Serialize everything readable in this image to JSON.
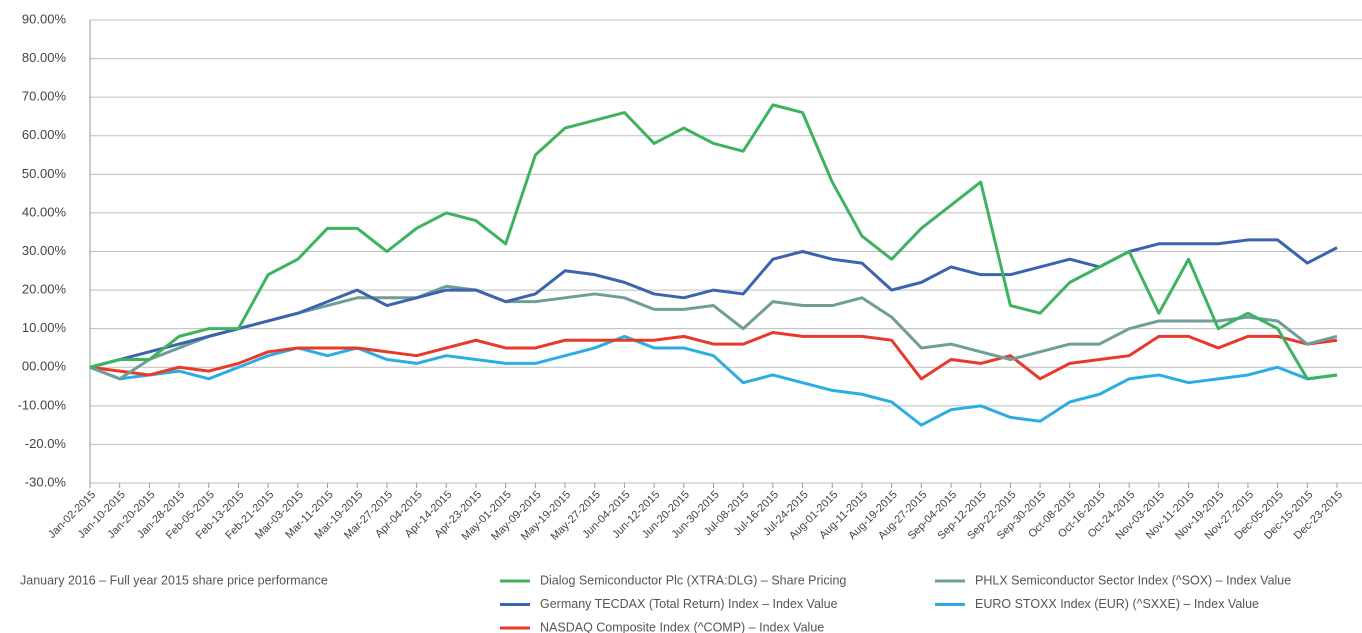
{
  "chart_data": {
    "type": "line",
    "footnote": "January 2016 – Full year 2015 share price performance",
    "categories": [
      "Jan-02-2015",
      "Jan-10-2015",
      "Jan-20-2015",
      "Jan-28-2015",
      "Feb-05-2015",
      "Feb-13-2015",
      "Feb-21-2015",
      "Mar-03-2015",
      "Mar-11-2015",
      "Mar-19-2015",
      "Mar-27-2015",
      "Apr-04-2015",
      "Apr-14-2015",
      "Apr-23-2015",
      "May-01-2015",
      "May-09-2015",
      "May-19-2015",
      "May-27-2015",
      "Jun-04-2015",
      "Jun-12-2015",
      "Jun-20-2015",
      "Jun-30-2015",
      "Jul-08-2015",
      "Jul-16-2015",
      "Jul-24-2015",
      "Aug-01-2015",
      "Aug-11-2015",
      "Aug-19-2015",
      "Aug-27-2015",
      "Sep-04-2015",
      "Sep-12-2015",
      "Sep-22-2015",
      "Sep-30-2015",
      "Oct-08-2015",
      "Oct-16-2015",
      "Oct-24-2015",
      "Nov-03-2015",
      "Nov-11-2015",
      "Nov-19-2015",
      "Nov-27-2015",
      "Dec-05-2015",
      "Dec-15-2015",
      "Dec-23-2015"
    ],
    "series": [
      {
        "name": "Dialog Semiconductor Plc (XTRA:DLG) – Share Pricing",
        "color": "#3db35f",
        "values": [
          0,
          2,
          2,
          8,
          10,
          10,
          24,
          28,
          36,
          36,
          30,
          36,
          40,
          38,
          32,
          55,
          62,
          64,
          66,
          58,
          62,
          58,
          56,
          68,
          66,
          48,
          34,
          28,
          36,
          42,
          48,
          16,
          14,
          22,
          26,
          30,
          14,
          28,
          10,
          14,
          10,
          -3,
          -2
        ]
      },
      {
        "name": "PHLX Semiconductor Sector Index (^SOX) – Index Value",
        "color": "#6f9e96",
        "values": [
          0,
          -3,
          2,
          5,
          8,
          10,
          12,
          14,
          16,
          18,
          18,
          18,
          21,
          20,
          17,
          17,
          18,
          19,
          18,
          15,
          15,
          16,
          10,
          17,
          16,
          16,
          18,
          13,
          5,
          6,
          4,
          2,
          4,
          6,
          6,
          10,
          12,
          12,
          12,
          13,
          12,
          6,
          8
        ]
      },
      {
        "name": "Germany TECDAX (Total Return) Index – Index Value",
        "color": "#3b64ae",
        "values": [
          0,
          2,
          4,
          6,
          8,
          10,
          12,
          14,
          17,
          20,
          16,
          18,
          20,
          20,
          17,
          19,
          25,
          24,
          22,
          19,
          18,
          20,
          19,
          28,
          30,
          28,
          27,
          20,
          22,
          26,
          24,
          24,
          26,
          28,
          26,
          30,
          32,
          32,
          32,
          33,
          33,
          27,
          31
        ]
      },
      {
        "name": "EURO STOXX Index (EUR) (^SXXE) – Index Value",
        "color": "#2badE4",
        "values": [
          0,
          -3,
          -2,
          -1,
          -3,
          0,
          3,
          5,
          3,
          5,
          2,
          1,
          3,
          2,
          1,
          1,
          3,
          5,
          8,
          5,
          5,
          3,
          -4,
          -2,
          -4,
          -6,
          -7,
          -9,
          -15,
          -11,
          -10,
          -13,
          -14,
          -9,
          -7,
          -3,
          -2,
          -4,
          -3,
          -2,
          0,
          -3,
          -2
        ]
      },
      {
        "name": "NASDAQ Composite Index (^COMP) – Index Value",
        "color": "#e8392a",
        "values": [
          0,
          -1,
          -2,
          0,
          -1,
          1,
          4,
          5,
          5,
          5,
          4,
          3,
          5,
          7,
          5,
          5,
          7,
          7,
          7,
          7,
          8,
          6,
          6,
          9,
          8,
          8,
          8,
          7,
          -3,
          2,
          1,
          3,
          -3,
          1,
          2,
          3,
          8,
          8,
          5,
          8,
          8,
          6,
          7
        ]
      }
    ],
    "ylim": [
      -30,
      90
    ],
    "yticks": [
      {
        "value": -30,
        "label": "-30.0%"
      },
      {
        "value": -20,
        "label": "-20.0%"
      },
      {
        "value": -10,
        "label": "-10.00%"
      },
      {
        "value": 0,
        "label": "00.00%"
      },
      {
        "value": 10,
        "label": "10.00%"
      },
      {
        "value": 20,
        "label": "20.00%"
      },
      {
        "value": 30,
        "label": "30.00%"
      },
      {
        "value": 40,
        "label": "40.00%"
      },
      {
        "value": 50,
        "label": "50.00%"
      },
      {
        "value": 60,
        "label": "60.00%"
      },
      {
        "value": 70,
        "label": "70.00%"
      },
      {
        "value": 80,
        "label": "80.00%"
      },
      {
        "value": 90,
        "label": "90.00%"
      }
    ],
    "grid": true
  }
}
